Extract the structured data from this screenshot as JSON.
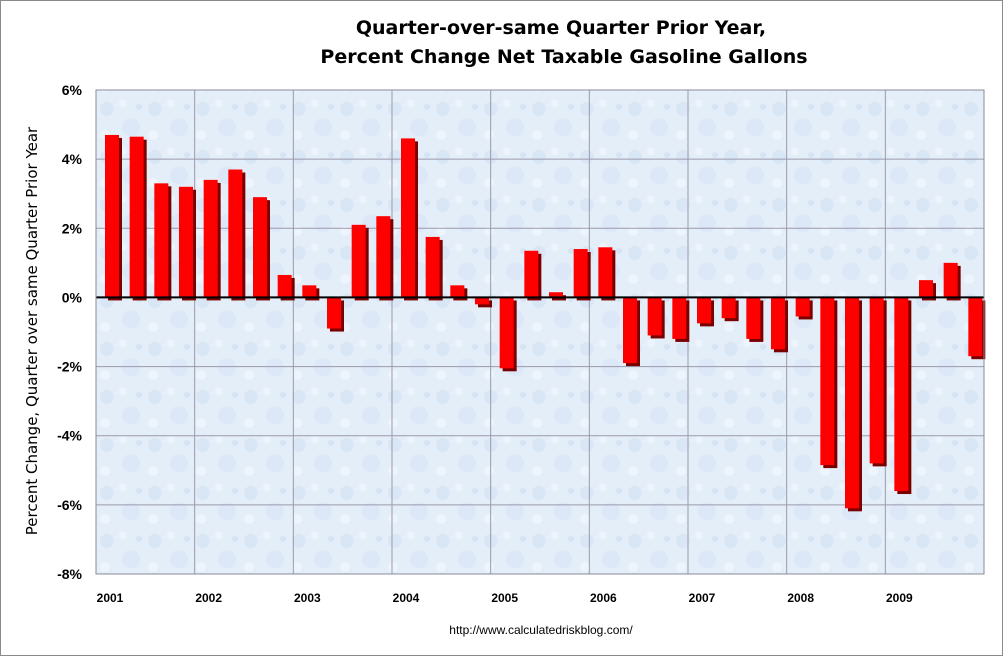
{
  "chart_data": {
    "type": "bar",
    "title": [
      "Quarter-over-same Quarter Prior Year,",
      "Percent Change Net Taxable Gasoline Gallons"
    ],
    "xlabel": "",
    "ylabel": "Percent Change, Quarter over same Quarter Prior Year",
    "ylim": [
      -8,
      6
    ],
    "yticks": [
      6,
      4,
      2,
      0,
      -2,
      -4,
      -6,
      -8
    ],
    "ytick_labels": [
      "6%",
      "4%",
      "2%",
      "0%",
      "-2%",
      "-4%",
      "-6%",
      "-8%"
    ],
    "year_labels": [
      "2001",
      "2002",
      "2003",
      "2004",
      "2005",
      "2006",
      "2007",
      "2008",
      "2009"
    ],
    "grid": true,
    "bar_color": "#ff0000",
    "bar_shadow_color": "#7a0000",
    "plot_background": "#e4eef9",
    "grid_color": "#9a9aaa",
    "categories": [
      "2001 Q1",
      "2001 Q2",
      "2001 Q3",
      "2001 Q4",
      "2002 Q1",
      "2002 Q2",
      "2002 Q3",
      "2002 Q4",
      "2003 Q1",
      "2003 Q2",
      "2003 Q3",
      "2003 Q4",
      "2004 Q1",
      "2004 Q2",
      "2004 Q3",
      "2004 Q4",
      "2005 Q1",
      "2005 Q2",
      "2005 Q3",
      "2005 Q4",
      "2006 Q1",
      "2006 Q2",
      "2006 Q3",
      "2006 Q4",
      "2007 Q1",
      "2007 Q2",
      "2007 Q3",
      "2007 Q4",
      "2008 Q1",
      "2008 Q2",
      "2008 Q3",
      "2008 Q4",
      "2009 Q1",
      "2009 Q2",
      "2009 Q3",
      "2009 Q4"
    ],
    "values": [
      4.7,
      4.65,
      3.3,
      3.2,
      3.4,
      3.7,
      2.9,
      0.65,
      0.35,
      -0.9,
      2.1,
      2.35,
      4.6,
      1.75,
      0.35,
      -0.2,
      -2.05,
      1.35,
      0.15,
      1.4,
      1.45,
      -1.9,
      -1.1,
      -1.2,
      -0.75,
      -0.6,
      -1.2,
      -1.5,
      -0.55,
      -4.85,
      -6.1,
      -4.8,
      -5.6,
      0.5,
      1.0,
      -1.7
    ],
    "source": "http://www.calculatedriskblog.com/"
  }
}
